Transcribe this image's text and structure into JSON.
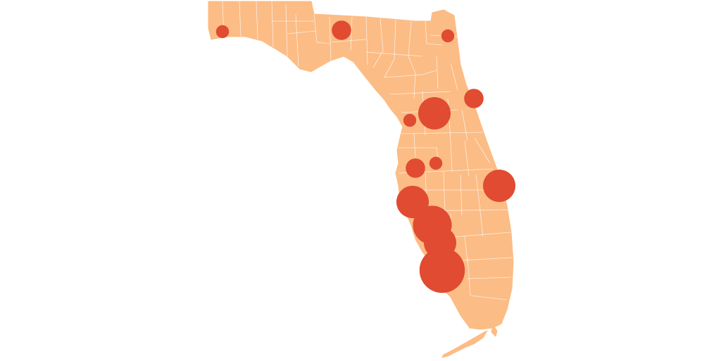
{
  "map": {
    "region": "Florida",
    "state_fill": "#fcbc85",
    "border_color": "#ffffff",
    "marker_color": "#e04b31",
    "background": "#ffffff"
  },
  "markers": [
    {
      "name": "pensacola",
      "relative_size": 2
    },
    {
      "name": "tallahassee",
      "relative_size": 3
    },
    {
      "name": "jacksonville",
      "relative_size": 2
    },
    {
      "name": "daytona-beach",
      "relative_size": 3
    },
    {
      "name": "gainesville",
      "relative_size": 5
    },
    {
      "name": "crystal-river",
      "relative_size": 2
    },
    {
      "name": "tampa",
      "relative_size": 3
    },
    {
      "name": "lakeland",
      "relative_size": 2
    },
    {
      "name": "melbourne",
      "relative_size": 5
    },
    {
      "name": "sarasota",
      "relative_size": 5
    },
    {
      "name": "port-charlotte",
      "relative_size": 6
    },
    {
      "name": "fort-myers",
      "relative_size": 5
    },
    {
      "name": "naples",
      "relative_size": 7
    }
  ]
}
